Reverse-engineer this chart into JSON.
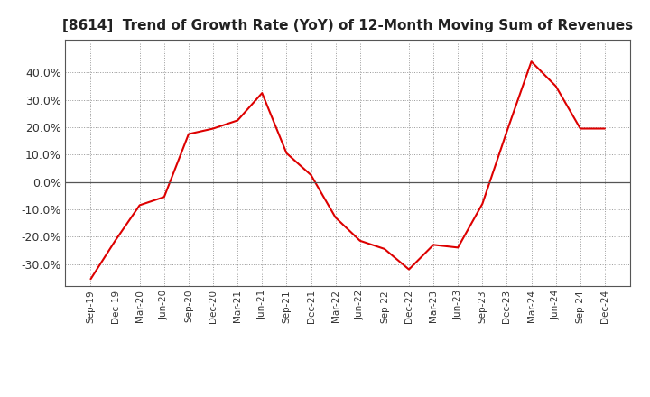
{
  "title": "[8614]  Trend of Growth Rate (YoY) of 12-Month Moving Sum of Revenues",
  "title_fontsize": 11,
  "line_color": "#DD0000",
  "background_color": "#FFFFFF",
  "plot_bg_color": "#FFFFFF",
  "grid_color": "#999999",
  "border_color": "#555555",
  "ylim": [
    -0.38,
    0.52
  ],
  "yticks": [
    -0.3,
    -0.2,
    -0.1,
    0.0,
    0.1,
    0.2,
    0.3,
    0.4
  ],
  "x_labels": [
    "Sep-19",
    "Dec-19",
    "Mar-20",
    "Jun-20",
    "Sep-20",
    "Dec-20",
    "Mar-21",
    "Jun-21",
    "Sep-21",
    "Dec-21",
    "Mar-22",
    "Jun-22",
    "Sep-22",
    "Dec-22",
    "Mar-23",
    "Jun-23",
    "Sep-23",
    "Dec-23",
    "Mar-24",
    "Jun-24",
    "Sep-24",
    "Dec-24"
  ],
  "y_values": [
    -0.355,
    -0.215,
    -0.085,
    -0.055,
    0.175,
    0.195,
    0.225,
    0.325,
    0.105,
    0.025,
    -0.13,
    -0.215,
    -0.245,
    -0.32,
    -0.23,
    -0.24,
    -0.08,
    0.185,
    0.44,
    0.35,
    0.195,
    0.195
  ]
}
